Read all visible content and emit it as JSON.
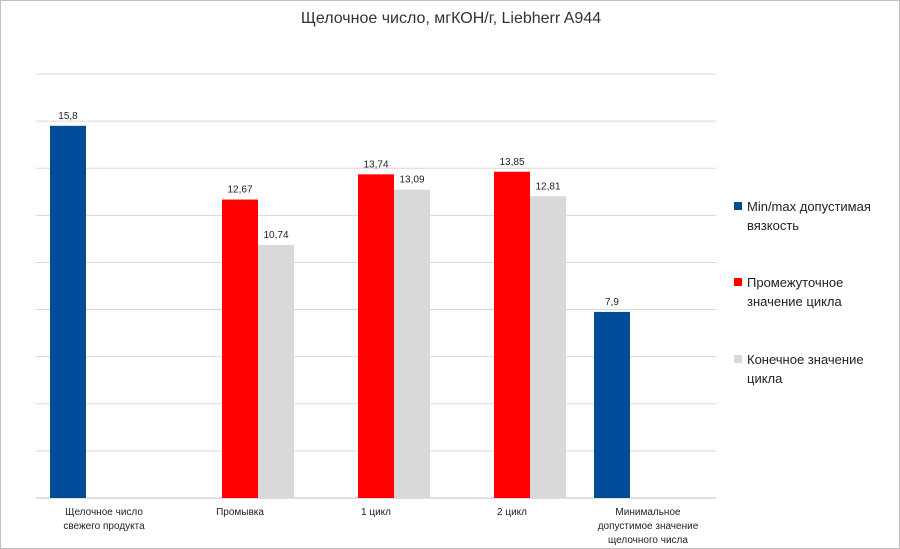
{
  "chart_data": {
    "type": "bar",
    "title": "Щелочное число, мгКОН/г, Liebherr A944",
    "categories": [
      "Щелочное число\nсвежего продукта",
      "Промывка",
      "1 цикл",
      "2 цикл",
      "Минимальное\nдопустимое значение\nщелочного числа"
    ],
    "series": [
      {
        "name": "Min/max допустимая вязкость",
        "color": "#004c99",
        "values": [
          15.8,
          null,
          null,
          null,
          7.9
        ],
        "value_labels": [
          "15,8",
          null,
          null,
          null,
          "7,9"
        ]
      },
      {
        "name": "Промежуточное значение цикла",
        "color": "#ff0000",
        "values": [
          null,
          12.67,
          13.74,
          13.85,
          null
        ],
        "value_labels": [
          null,
          "12,67",
          "13,74",
          "13,85",
          null
        ]
      },
      {
        "name": "Конечное значение цикла",
        "color": "#d9d9d9",
        "values": [
          null,
          10.74,
          13.09,
          12.81,
          null
        ],
        "value_labels": [
          null,
          "10,74",
          "13,09",
          "12,81",
          null
        ]
      }
    ],
    "ylim": [
      0,
      18
    ],
    "yticks": [
      0,
      2,
      4,
      6,
      8,
      10,
      12,
      14,
      16,
      18
    ],
    "ytick_labels": false,
    "grid": true,
    "legend": "right"
  }
}
